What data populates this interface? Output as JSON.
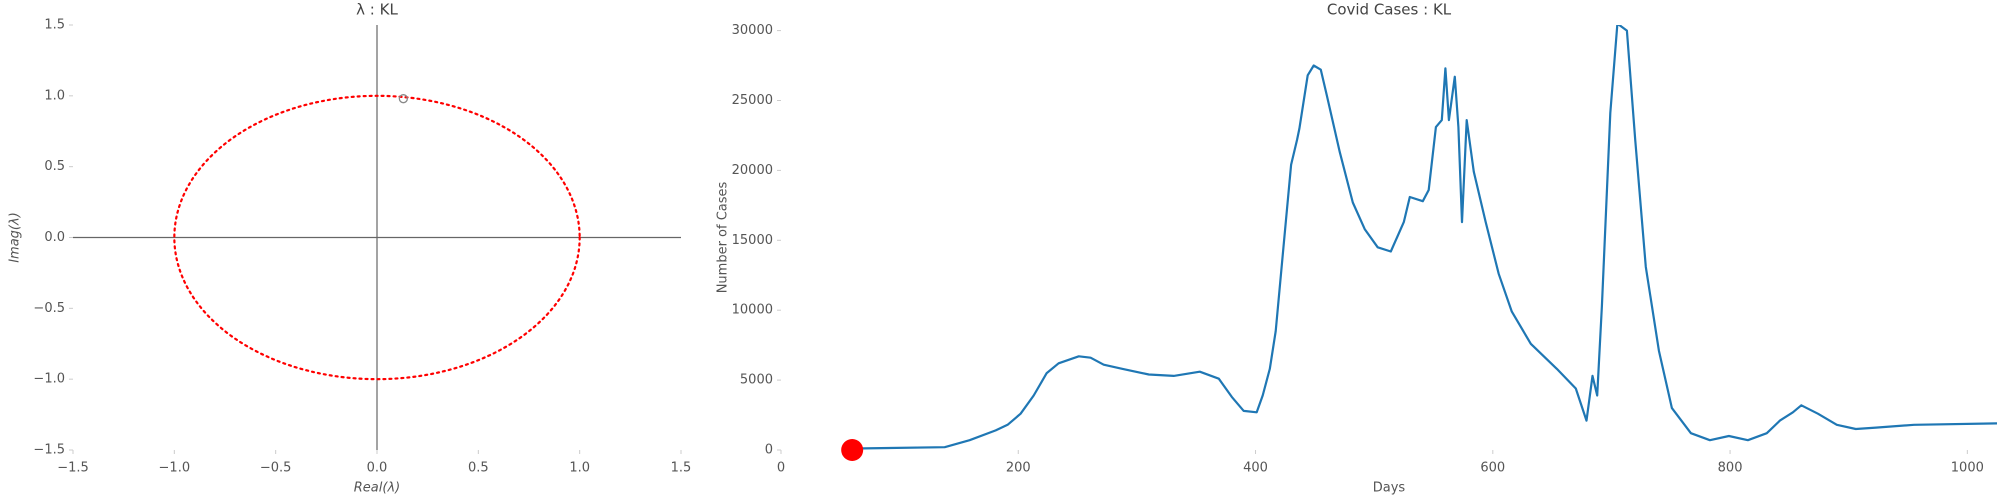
{
  "chart_data": [
    {
      "type": "scatter",
      "title": "λ : KL",
      "xlabel": "Real(λ)",
      "ylabel": "Imag(λ)",
      "x": [
        0.13
      ],
      "y": [
        0.98
      ],
      "color": "#888888",
      "unit_circle": {
        "radius": 1,
        "color": "#ff0000"
      },
      "zero_lines": true,
      "xlim": [
        -1.5,
        1.5
      ],
      "ylim": [
        -1.5,
        1.5
      ],
      "xticks": [
        {
          "value": -1.5,
          "label": "−1.5"
        },
        {
          "value": -1.0,
          "label": "−1.0"
        },
        {
          "value": -0.5,
          "label": "−0.5"
        },
        {
          "value": 0,
          "label": "0.0"
        },
        0.5,
        {
          "value": 1.0,
          "label": "1.0"
        },
        1.5
      ],
      "yticks": [
        {
          "value": -1.5,
          "label": "−1.5"
        },
        {
          "value": -1.0,
          "label": "−1.0"
        },
        {
          "value": -0.5,
          "label": "−0.5"
        },
        {
          "value": 0,
          "label": "0.0"
        },
        0.5,
        {
          "value": 1.0,
          "label": "1.0"
        },
        1.5
      ]
    },
    {
      "type": "line",
      "title": "Covid Cases : KL",
      "xlabel": "Days",
      "ylabel": "Number of Cases",
      "color": "#1f77b4",
      "x": [
        55,
        138,
        159,
        181,
        191,
        202,
        213,
        224,
        234,
        251,
        261,
        272,
        288,
        310,
        331,
        353,
        369,
        380,
        390,
        401,
        406,
        412,
        417,
        423,
        430,
        435,
        437,
        444,
        449,
        455,
        460,
        471,
        482,
        492,
        503,
        514,
        525,
        530,
        541,
        546,
        552,
        557,
        560,
        563,
        568,
        571,
        574,
        578,
        584,
        594,
        605,
        616,
        632,
        654,
        670,
        679,
        684,
        688,
        692,
        699,
        705,
        713,
        720,
        729,
        740,
        751,
        767,
        783,
        799,
        815,
        831,
        842,
        853,
        860,
        874,
        890,
        906,
        923,
        955,
        1025
      ],
      "values": [
        100,
        200,
        700,
        1400,
        1800,
        2600,
        3900,
        5500,
        6200,
        6700,
        6600,
        6100,
        5800,
        5400,
        5300,
        5600,
        5100,
        3800,
        2800,
        2700,
        3900,
        5800,
        8500,
        14000,
        20400,
        22200,
        23000,
        26800,
        27500,
        27200,
        25400,
        21300,
        17700,
        15800,
        14500,
        14200,
        16300,
        18100,
        17800,
        18600,
        23100,
        23600,
        27300,
        23600,
        26700,
        23100,
        16300,
        23600,
        19900,
        16300,
        12600,
        9900,
        7600,
        5800,
        4400,
        2100,
        5300,
        3900,
        10300,
        24100,
        30500,
        30000,
        22200,
        13100,
        7100,
        3000,
        1200,
        700,
        1000,
        700,
        1200,
        2100,
        2700,
        3200,
        2600,
        1800,
        1500,
        1600,
        1800,
        1900
      ],
      "marker": {
        "x": 60,
        "y": 0,
        "color": "#ff0000"
      },
      "xlim": [
        0,
        1025
      ],
      "ylim": [
        0,
        30400
      ],
      "xticks": [
        0,
        200,
        400,
        600,
        800,
        1000
      ],
      "yticks": [
        0,
        5000,
        10000,
        15000,
        20000,
        25000,
        30000
      ]
    }
  ]
}
